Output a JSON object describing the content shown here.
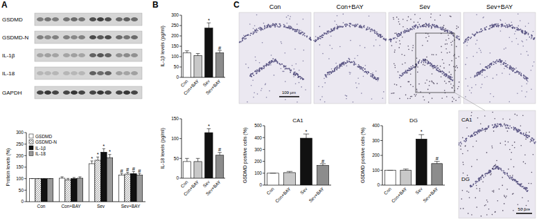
{
  "panel_labels": [
    "A",
    "B",
    "C"
  ],
  "blot": {
    "bands": [
      "GSDMD",
      "GSDMD-N",
      "IL-1β",
      "IL-18",
      "GAPDH"
    ]
  },
  "micrographs": {
    "titles": [
      "Con",
      "Con+BAY",
      "Sev",
      "Sev+BAY"
    ],
    "scale_bar": "100 μm",
    "inset": {
      "labels": [
        "CA1",
        "DG"
      ],
      "scale_bar": "50 μm"
    }
  },
  "chart_data": [
    {
      "type": "bar",
      "y_label": "Protein levels (%)",
      "categories": [
        "Con",
        "Con+BAY",
        "Sev",
        "Sev+BAY"
      ],
      "series": [
        {
          "name": "GSDMD",
          "color": "#ffffff",
          "values": [
            100,
            102,
            165,
            115
          ],
          "errors": [
            0,
            6,
            12,
            8
          ]
        },
        {
          "name": "GSDMD-N",
          "color": "#ffffff",
          "line_style": "hatched",
          "values": [
            100,
            95,
            180,
            120
          ],
          "errors": [
            0,
            6,
            14,
            8
          ]
        },
        {
          "name": "IL-1β",
          "color": "#111111",
          "values": [
            100,
            100,
            215,
            122
          ],
          "errors": [
            0,
            5,
            15,
            9
          ]
        },
        {
          "name": "IL-18",
          "color": "#9a9a9a",
          "values": [
            100,
            102,
            190,
            115
          ],
          "errors": [
            0,
            6,
            15,
            8
          ]
        }
      ],
      "ylim": [
        0,
        300
      ],
      "yticks": [
        0,
        50,
        100,
        150,
        200,
        250,
        300
      ],
      "legend": "upper left",
      "annotations": [
        {
          "category": "Sev",
          "series": "GSDMD",
          "text": "*"
        },
        {
          "category": "Sev",
          "series": "GSDMD-N",
          "text": "*"
        },
        {
          "category": "Sev",
          "series": "IL-1β",
          "text": "*"
        },
        {
          "category": "Sev",
          "series": "IL-18",
          "text": "*"
        },
        {
          "category": "Sev+BAY",
          "series": "GSDMD",
          "text": "#"
        },
        {
          "category": "Sev+BAY",
          "series": "GSDMD-N",
          "text": "#"
        },
        {
          "category": "Sev+BAY",
          "series": "IL-1β",
          "text": "#"
        },
        {
          "category": "Sev+BAY",
          "series": "IL-18",
          "text": "#"
        }
      ]
    },
    {
      "type": "bar",
      "y_label": "IL-1β levels (pg/ml)",
      "categories": [
        "Con",
        "Con+BAY",
        "Sev",
        "Sev+BAY"
      ],
      "values": [
        118,
        105,
        238,
        118
      ],
      "errors": [
        10,
        10,
        25,
        12
      ],
      "colors": [
        "#ffffff",
        "#c8c8c8",
        "#111111",
        "#8c8c8c"
      ],
      "ylim": [
        0,
        300
      ],
      "yticks": [
        0,
        50,
        100,
        150,
        200,
        250,
        300
      ],
      "annotations": [
        {
          "category": "Sev",
          "text": "*"
        },
        {
          "category": "Sev+BAY",
          "text": "#"
        }
      ]
    },
    {
      "type": "bar",
      "y_label": "IL-18 levels (pg/ml)",
      "categories": [
        "Con",
        "Con+BAY",
        "Sev",
        "Sev+BAY"
      ],
      "values": [
        42,
        42,
        115,
        58
      ],
      "errors": [
        8,
        8,
        10,
        7
      ],
      "colors": [
        "#ffffff",
        "#c8c8c8",
        "#111111",
        "#8c8c8c"
      ],
      "ylim": [
        0,
        150
      ],
      "yticks": [
        0,
        50,
        100,
        150
      ],
      "annotations": [
        {
          "category": "Sev",
          "text": "*"
        },
        {
          "category": "Sev+BAY",
          "text": "#"
        }
      ]
    },
    {
      "type": "bar",
      "title": "CA1",
      "y_label": "GSDMD positive cells (%)",
      "categories": [
        "Con",
        "Con+BAY",
        "Sev",
        "Sev+BAY"
      ],
      "values": [
        100,
        105,
        395,
        165
      ],
      "errors": [
        0,
        10,
        35,
        15
      ],
      "colors": [
        "#ffffff",
        "#c8c8c8",
        "#111111",
        "#8c8c8c"
      ],
      "ylim": [
        0,
        500
      ],
      "yticks": [
        0,
        100,
        200,
        300,
        400,
        500
      ],
      "annotations": [
        {
          "category": "Sev",
          "text": "*"
        },
        {
          "category": "Sev+BAY",
          "text": "#"
        }
      ]
    },
    {
      "type": "bar",
      "title": "DG",
      "y_label": "GSDMD positive cells (%)",
      "categories": [
        "Con",
        "Con+BAY",
        "Sev",
        "Sev+BAY"
      ],
      "values": [
        100,
        100,
        310,
        145
      ],
      "errors": [
        0,
        8,
        30,
        15
      ],
      "colors": [
        "#ffffff",
        "#c8c8c8",
        "#111111",
        "#8c8c8c"
      ],
      "ylim": [
        0,
        400
      ],
      "yticks": [
        0,
        100,
        200,
        300,
        400
      ],
      "annotations": [
        {
          "category": "Sev",
          "text": "*"
        },
        {
          "category": "Sev+BAY",
          "text": "#"
        }
      ]
    }
  ]
}
